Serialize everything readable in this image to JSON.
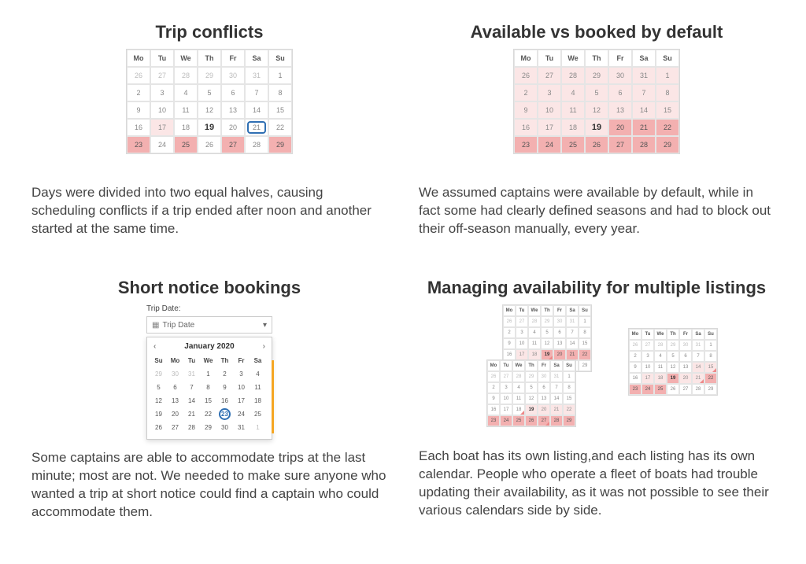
{
  "colors": {
    "text": "#333333",
    "muted": "#888888",
    "border": "#d9d9d9",
    "cell_border": "#e5e5e5",
    "pink_dark": "#f3b0b0",
    "pink_light": "#fbe6e6",
    "ring": "#2f6fb3",
    "orange": "#f5a623",
    "background": "#ffffff"
  },
  "dow_mon_first": [
    "Mo",
    "Tu",
    "We",
    "Th",
    "Fr",
    "Sa",
    "Su"
  ],
  "dow_sun_first": [
    "Su",
    "Mo",
    "Tu",
    "We",
    "Th",
    "Fr",
    "Sa"
  ],
  "grid_start_26": [
    [
      26,
      27,
      28,
      29,
      30,
      31,
      1
    ],
    [
      2,
      3,
      4,
      5,
      6,
      7,
      8
    ],
    [
      9,
      10,
      11,
      12,
      13,
      14,
      15
    ],
    [
      16,
      17,
      18,
      19,
      20,
      21,
      22
    ],
    [
      23,
      24,
      25,
      26,
      27,
      28,
      29
    ]
  ],
  "cards": {
    "trip_conflicts": {
      "title": "Trip conflicts",
      "desc": "Days were divided into two equal halves, causing scheduling conflicts if a trip ended after noon and another started at the same time.",
      "bold_day": 19,
      "ring_day": 21,
      "pink_dark_days": [
        23,
        25,
        27,
        29
      ],
      "pink_light_days": [
        17
      ]
    },
    "available_default": {
      "title": "Available vs booked by default",
      "desc": "We assumed captains were available by default, while in fact some had clearly defined seasons and had to block out their off-season manually, every year.",
      "bold_day": 19,
      "pink_dark_days": [
        20,
        21,
        22,
        23,
        24,
        25,
        26,
        27,
        28,
        29
      ],
      "pink_light_upto_day": 19
    },
    "short_notice": {
      "title": "Short notice bookings",
      "desc": "Some captains are able to accommodate trips at the last minute; most are not. We needed to make sure anyone who wanted a trip at short notice could find a captain who could accommodate them.",
      "label": "Trip Date:",
      "placeholder": "Trip Date",
      "month_label": "January 2020",
      "grid": [
        [
          29,
          30,
          31,
          1,
          2,
          3,
          4
        ],
        [
          5,
          6,
          7,
          8,
          9,
          10,
          11
        ],
        [
          12,
          13,
          14,
          15,
          16,
          17,
          18
        ],
        [
          19,
          20,
          21,
          22,
          23,
          24,
          25
        ],
        [
          26,
          27,
          28,
          29,
          30,
          31,
          1
        ]
      ],
      "circle_day": 23
    },
    "multi_listings": {
      "title": "Managing availability for multiple listings",
      "desc": "Each boat has its own listing,and each listing has its own calendar. People who operate a fleet of boats had trouble updating their availability, as it was not possible to see their various calendars side by side."
    }
  }
}
